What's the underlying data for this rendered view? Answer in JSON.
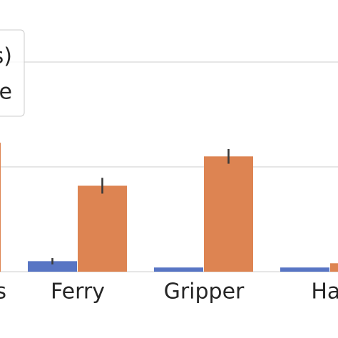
{
  "chart_data": {
    "type": "bar",
    "categories": [
      "s",
      "Ferry",
      "Gripper",
      "Har"
    ],
    "series": [
      {
        "name": "s)",
        "color": "#5875c4",
        "values": [
          null,
          0.1,
          0.04,
          0.04
        ],
        "errors": [
          null,
          0.03,
          null,
          null
        ]
      },
      {
        "name": "e",
        "color": "#dd8452",
        "values": [
          1.23,
          0.82,
          1.1,
          0.08
        ],
        "errors": [
          null,
          0.075,
          0.07,
          null
        ]
      }
    ],
    "ylim": [
      0,
      2.5
    ],
    "yticks": [
      0,
      1,
      2
    ],
    "grid": true
  }
}
